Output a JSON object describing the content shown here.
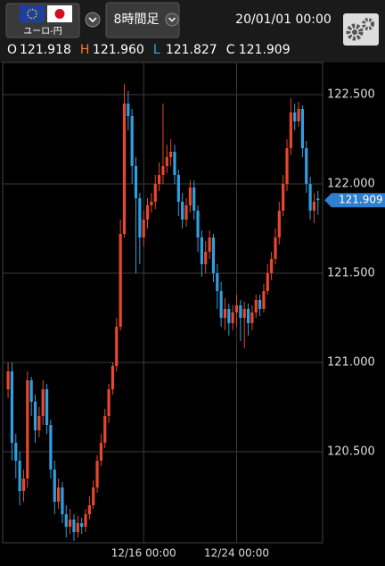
{
  "header": {
    "pair": "ユーロ-円",
    "timeframe": "8時間足",
    "datetime": "20/01/01 00:00",
    "ohlc": [
      {
        "key": "O",
        "value": "121.918"
      },
      {
        "key": "H",
        "value": "121.960"
      },
      {
        "key": "L",
        "value": "121.827"
      },
      {
        "key": "C",
        "value": "121.909"
      }
    ]
  },
  "chart_data": {
    "type": "candlestick",
    "up_color": "#e8472b",
    "down_color": "#2f9fe0",
    "grid": true,
    "xlim": [
      -1.4,
      81.2
    ],
    "xticks": [
      {
        "value": 35,
        "label": "12/16 00:00"
      },
      {
        "value": 59,
        "label": "12/24 00:00"
      }
    ],
    "ylim": [
      119.99,
      122.68
    ],
    "yticks": [
      {
        "value": 120.5,
        "label": "120.500"
      },
      {
        "value": 121,
        "label": "121.000"
      },
      {
        "value": 121.5,
        "label": "121.500"
      },
      {
        "value": 122,
        "label": "122.000"
      },
      {
        "value": 122.5,
        "label": "122.500"
      }
    ],
    "open": [
      120.85,
      120.95,
      120.55,
      120.45,
      120.28,
      120.35,
      120.9,
      120.78,
      120.62,
      120.7,
      120.85,
      120.65,
      120.4,
      120.22,
      120.3,
      120.15,
      120.08,
      120.12,
      120.05,
      120.1,
      120.08,
      120.15,
      120.2,
      120.3,
      120.45,
      120.55,
      120.7,
      120.85,
      120.98,
      121.2,
      121.72,
      122.45,
      122.38,
      122.1,
      121.92,
      121.7,
      121.8,
      121.88,
      121.9,
      122.0,
      122.05,
      122.1,
      122.15,
      122.18,
      122.05,
      121.9,
      121.8,
      121.88,
      121.98,
      121.85,
      121.7,
      121.55,
      121.62,
      121.7,
      121.5,
      121.4,
      121.25,
      121.3,
      121.22,
      121.28,
      121.32,
      121.25,
      121.3,
      121.22,
      121.28,
      121.35,
      121.3,
      121.4,
      121.5,
      121.58,
      121.7,
      121.85,
      122.0,
      122.2,
      122.4,
      122.35,
      122.42,
      122.2,
      122.0,
      121.85,
      121.918
    ],
    "high": [
      121.0,
      121.0,
      120.6,
      120.5,
      120.4,
      120.95,
      120.92,
      120.82,
      120.75,
      120.9,
      120.88,
      120.68,
      120.45,
      120.35,
      120.33,
      120.2,
      120.18,
      120.15,
      120.14,
      120.13,
      120.18,
      120.25,
      120.34,
      120.48,
      120.6,
      120.74,
      120.88,
      121.0,
      121.25,
      121.8,
      122.56,
      122.52,
      122.42,
      122.15,
      121.95,
      121.85,
      121.92,
      121.95,
      122.05,
      122.12,
      122.45,
      122.22,
      122.25,
      122.22,
      122.08,
      121.95,
      121.92,
      122.02,
      122.02,
      121.88,
      121.74,
      121.68,
      121.74,
      121.72,
      121.55,
      121.45,
      121.36,
      121.33,
      121.32,
      121.38,
      121.35,
      121.34,
      121.33,
      121.32,
      121.38,
      121.38,
      121.44,
      121.55,
      121.62,
      121.75,
      121.9,
      122.05,
      122.25,
      122.48,
      122.45,
      122.46,
      122.44,
      122.24,
      122.04,
      121.95,
      121.96
    ],
    "low": [
      120.8,
      120.45,
      120.35,
      120.2,
      120.22,
      120.3,
      120.7,
      120.55,
      120.58,
      120.65,
      120.6,
      120.35,
      120.15,
      120.18,
      120.1,
      120.02,
      120.04,
      120.0,
      120.02,
      120.04,
      120.05,
      120.12,
      120.18,
      120.27,
      120.42,
      120.52,
      120.66,
      120.82,
      120.95,
      121.18,
      121.7,
      122.3,
      122.0,
      121.5,
      121.55,
      121.65,
      121.75,
      121.84,
      121.86,
      121.96,
      122.0,
      122.06,
      122.1,
      122.0,
      121.82,
      121.75,
      121.76,
      121.84,
      121.8,
      121.62,
      121.48,
      121.5,
      121.58,
      121.45,
      121.3,
      121.2,
      121.18,
      121.15,
      121.18,
      121.2,
      121.12,
      121.08,
      121.15,
      121.18,
      121.25,
      121.26,
      121.28,
      121.38,
      121.46,
      121.55,
      121.66,
      121.82,
      121.96,
      122.16,
      122.3,
      122.32,
      122.15,
      121.95,
      121.8,
      121.78,
      121.827
    ],
    "close": [
      120.95,
      120.55,
      120.45,
      120.28,
      120.35,
      120.9,
      120.78,
      120.62,
      120.7,
      120.85,
      120.65,
      120.4,
      120.22,
      120.3,
      120.15,
      120.08,
      120.12,
      120.05,
      120.1,
      120.08,
      120.15,
      120.2,
      120.3,
      120.45,
      120.55,
      120.7,
      120.85,
      120.98,
      121.2,
      121.72,
      122.45,
      122.38,
      122.1,
      121.92,
      121.7,
      121.8,
      121.88,
      121.9,
      122.0,
      122.05,
      122.1,
      122.15,
      122.18,
      122.05,
      121.9,
      121.8,
      121.88,
      121.98,
      121.85,
      121.7,
      121.55,
      121.62,
      121.7,
      121.5,
      121.4,
      121.25,
      121.3,
      121.22,
      121.28,
      121.32,
      121.25,
      121.3,
      121.22,
      121.28,
      121.35,
      121.3,
      121.4,
      121.5,
      121.58,
      121.7,
      121.85,
      122.0,
      122.2,
      122.4,
      122.35,
      122.42,
      122.2,
      122.0,
      121.85,
      121.9,
      121.909
    ]
  }
}
